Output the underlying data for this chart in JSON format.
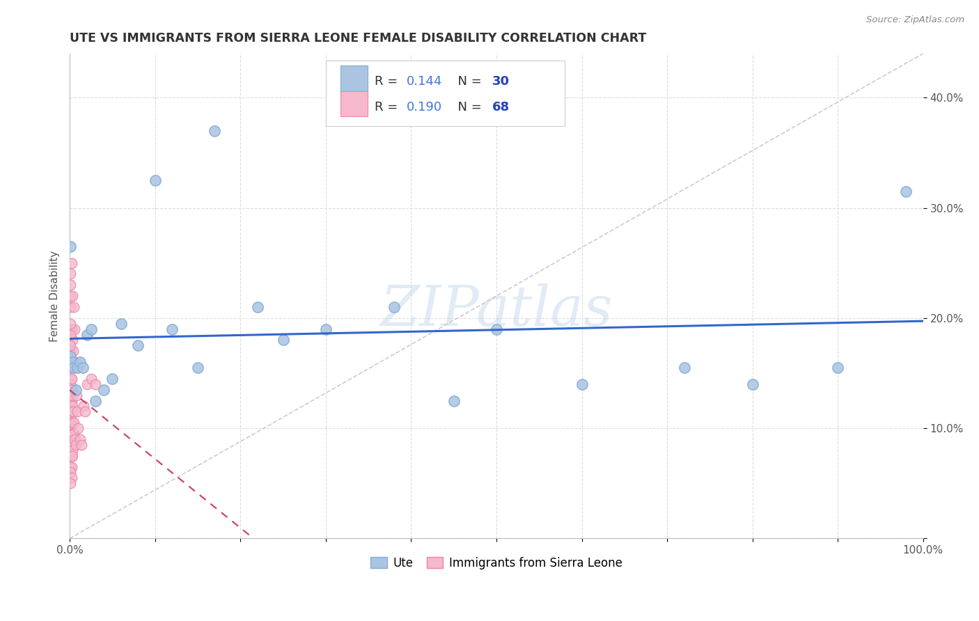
{
  "title": "UTE VS IMMIGRANTS FROM SIERRA LEONE FEMALE DISABILITY CORRELATION CHART",
  "source": "Source: ZipAtlas.com",
  "ylabel": "Female Disability",
  "xlim": [
    0,
    1.0
  ],
  "ylim": [
    0,
    0.44
  ],
  "xticks": [
    0.0,
    0.1,
    0.2,
    0.3,
    0.4,
    0.5,
    0.6,
    0.7,
    0.8,
    0.9,
    1.0
  ],
  "xticklabels": [
    "0.0%",
    "",
    "",
    "",
    "",
    "",
    "",
    "",
    "",
    "",
    "100.0%"
  ],
  "yticks": [
    0.0,
    0.1,
    0.2,
    0.3,
    0.4
  ],
  "yticklabels": [
    "",
    "10.0%",
    "20.0%",
    "30.0%",
    "40.0%"
  ],
  "ute_color": "#aac4e2",
  "ute_edge_color": "#85aed4",
  "sl_color": "#f5b8cc",
  "sl_edge_color": "#e888a8",
  "trendline_ute_color": "#3366cc",
  "trendline_sl_color": "#cc4466",
  "diagonal_color": "#cccccc",
  "legend_r_color": "#333333",
  "legend_val_color": "#4477dd",
  "legend_n_color": "#333333",
  "legend_nval_color": "#2244bb",
  "legend_r_ute": "0.144",
  "legend_n_ute": "30",
  "legend_r_sl": "0.190",
  "legend_n_sl": "68",
  "watermark": "ZIPatlas",
  "background_color": "#ffffff",
  "grid_color": "#dddddd",
  "ute_x": [
    0.001,
    0.001,
    0.003,
    0.005,
    0.007,
    0.009,
    0.012,
    0.015,
    0.02,
    0.025,
    0.03,
    0.04,
    0.05,
    0.06,
    0.08,
    0.1,
    0.12,
    0.15,
    0.17,
    0.22,
    0.25,
    0.3,
    0.38,
    0.45,
    0.5,
    0.6,
    0.72,
    0.8,
    0.9,
    0.98
  ],
  "ute_y": [
    0.165,
    0.265,
    0.16,
    0.155,
    0.135,
    0.155,
    0.16,
    0.155,
    0.185,
    0.19,
    0.125,
    0.135,
    0.145,
    0.195,
    0.175,
    0.325,
    0.19,
    0.155,
    0.37,
    0.21,
    0.18,
    0.19,
    0.21,
    0.125,
    0.19,
    0.14,
    0.155,
    0.14,
    0.155,
    0.315
  ],
  "sl_x": [
    0.001,
    0.001,
    0.001,
    0.001,
    0.001,
    0.001,
    0.001,
    0.001,
    0.001,
    0.001,
    0.001,
    0.001,
    0.001,
    0.001,
    0.001,
    0.001,
    0.001,
    0.001,
    0.001,
    0.001,
    0.002,
    0.002,
    0.002,
    0.002,
    0.002,
    0.002,
    0.002,
    0.002,
    0.002,
    0.002,
    0.003,
    0.003,
    0.003,
    0.003,
    0.004,
    0.004,
    0.005,
    0.005,
    0.006,
    0.007,
    0.008,
    0.009,
    0.01,
    0.012,
    0.014,
    0.016,
    0.018,
    0.02,
    0.025,
    0.03,
    0.001,
    0.001,
    0.002,
    0.002,
    0.003,
    0.003,
    0.004,
    0.005,
    0.006,
    0.007,
    0.001,
    0.001,
    0.001,
    0.001,
    0.001,
    0.001,
    0.002,
    0.001
  ],
  "sl_y": [
    0.155,
    0.145,
    0.135,
    0.125,
    0.115,
    0.105,
    0.095,
    0.085,
    0.075,
    0.065,
    0.14,
    0.13,
    0.12,
    0.11,
    0.1,
    0.16,
    0.17,
    0.21,
    0.19,
    0.23,
    0.135,
    0.125,
    0.115,
    0.105,
    0.095,
    0.085,
    0.075,
    0.065,
    0.145,
    0.135,
    0.13,
    0.12,
    0.08,
    0.075,
    0.115,
    0.095,
    0.105,
    0.095,
    0.09,
    0.085,
    0.13,
    0.115,
    0.1,
    0.09,
    0.085,
    0.12,
    0.115,
    0.14,
    0.145,
    0.14,
    0.24,
    0.22,
    0.19,
    0.25,
    0.22,
    0.18,
    0.17,
    0.21,
    0.19,
    0.16,
    0.155,
    0.165,
    0.175,
    0.185,
    0.195,
    0.06,
    0.055,
    0.05
  ]
}
